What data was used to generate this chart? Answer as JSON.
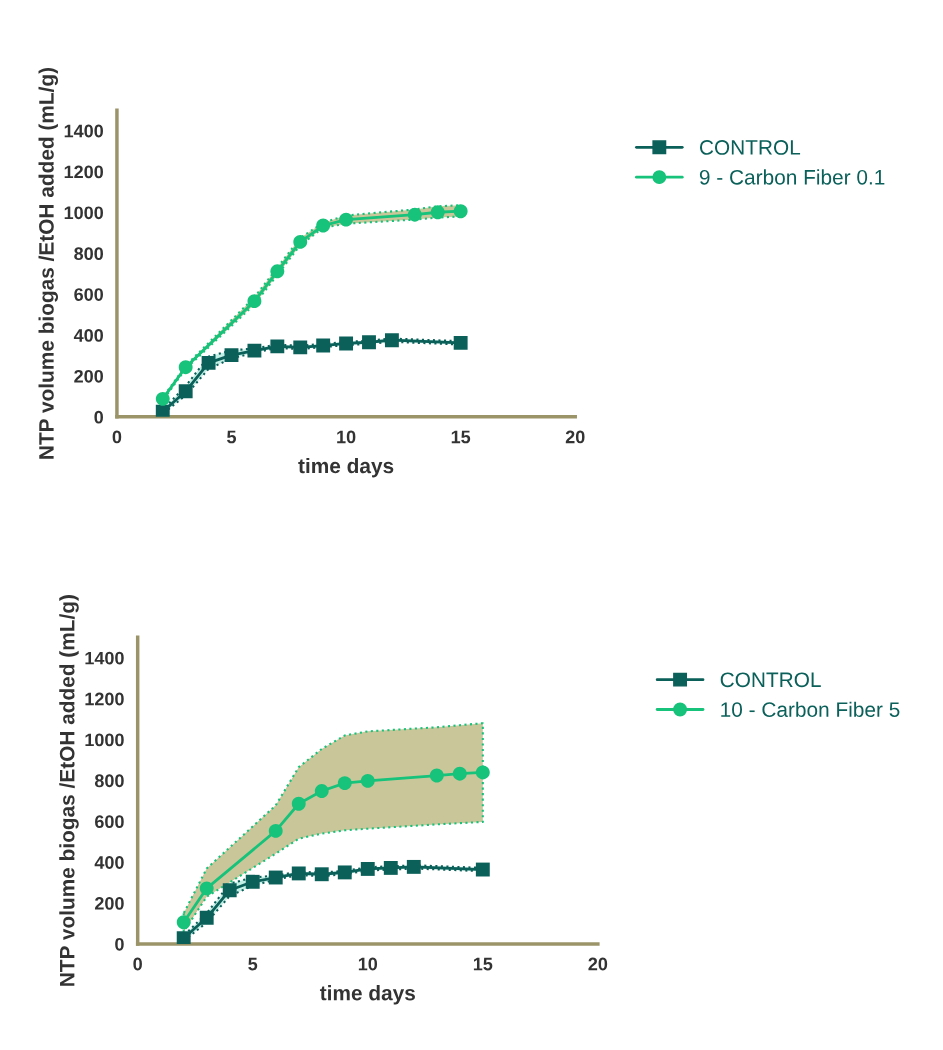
{
  "chart_data": [
    {
      "type": "line",
      "xlabel": "time days",
      "ylabel": "NTP volume biogas /EtOH added (mL/g)",
      "xlim": [
        0,
        20
      ],
      "xticks": [
        0,
        5,
        10,
        15,
        20
      ],
      "ylim": [
        0,
        1500
      ],
      "yticks": [
        0,
        200,
        400,
        600,
        800,
        1000,
        1200,
        1400
      ],
      "grid": false,
      "legend": "right",
      "series": [
        {
          "name": "CONTROL",
          "color": "#0b605a",
          "marker": "square",
          "x": [
            2,
            3,
            4,
            5,
            6,
            7,
            8,
            9,
            10,
            11,
            12,
            15
          ],
          "values": [
            25,
            125,
            264,
            302,
            324,
            345,
            340,
            349,
            359,
            365,
            375,
            362
          ],
          "lower": [
            15,
            105,
            235,
            285,
            315,
            337,
            332,
            341,
            351,
            357,
            367,
            354
          ],
          "upper": [
            35,
            150,
            295,
            325,
            335,
            353,
            348,
            357,
            367,
            373,
            383,
            370
          ]
        },
        {
          "name": "9 - Carbon Fiber 0.1",
          "color": "#17c27a",
          "marker": "circle",
          "x": [
            2,
            3,
            6,
            7,
            8,
            9,
            10,
            13,
            14,
            15
          ],
          "values": [
            88,
            243,
            566,
            712,
            856,
            936,
            965,
            989,
            1001,
            1006
          ],
          "lower": [
            80,
            235,
            550,
            695,
            840,
            925,
            945,
            965,
            975,
            980
          ],
          "upper": [
            95,
            250,
            585,
            730,
            875,
            950,
            985,
            1015,
            1030,
            1035
          ]
        }
      ]
    },
    {
      "type": "line",
      "xlabel": "time days",
      "ylabel": "NTP volume biogas /EtOH added (mL/g)",
      "xlim": [
        0,
        20
      ],
      "xticks": [
        0,
        5,
        10,
        15,
        20
      ],
      "ylim": [
        0,
        1500
      ],
      "yticks": [
        0,
        200,
        400,
        600,
        800,
        1000,
        1200,
        1400
      ],
      "grid": false,
      "legend": "right",
      "series": [
        {
          "name": "CONTROL",
          "color": "#0b605a",
          "marker": "square",
          "x": [
            2,
            3,
            4,
            5,
            6,
            7,
            8,
            9,
            10,
            11,
            12,
            15
          ],
          "values": [
            28,
            128,
            263,
            304,
            325,
            345,
            341,
            350,
            367,
            372,
            377,
            364
          ],
          "lower": [
            15,
            105,
            235,
            285,
            315,
            337,
            332,
            341,
            359,
            364,
            369,
            356
          ],
          "upper": [
            40,
            150,
            295,
            325,
            335,
            353,
            349,
            358,
            375,
            380,
            385,
            372
          ]
        },
        {
          "name": "10 - Carbon Fiber 5",
          "color": "#17c27a",
          "marker": "circle",
          "x": [
            2,
            3,
            6,
            7,
            8,
            9,
            10,
            13,
            14,
            15
          ],
          "values": [
            106,
            272,
            553,
            686,
            748,
            787,
            798,
            824,
            833,
            839
          ],
          "lower": [
            60,
            231,
            442,
            515,
            540,
            556,
            564,
            585,
            591,
            597
          ],
          "upper": [
            150,
            369,
            678,
            865,
            954,
            1020,
            1040,
            1060,
            1070,
            1080
          ]
        }
      ]
    }
  ]
}
